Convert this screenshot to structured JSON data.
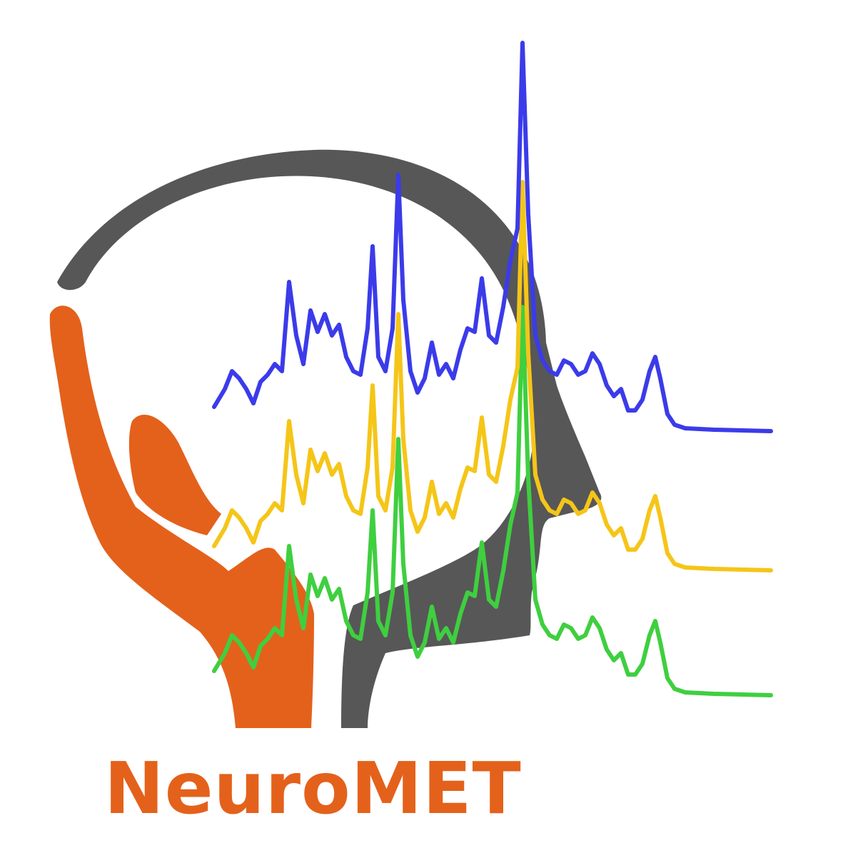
{
  "logo": {
    "wordmark": "NeuroMET",
    "colors": {
      "orange": "#E4611B",
      "gray": "#575757",
      "blue": "#3B3BEA",
      "yellow": "#F5C518",
      "green": "#3FCF3F",
      "background": "#FFFFFF"
    },
    "icons": [
      "head-profile-icon",
      "cupped-hand-icon",
      "spectrum-lines-icon"
    ]
  }
}
